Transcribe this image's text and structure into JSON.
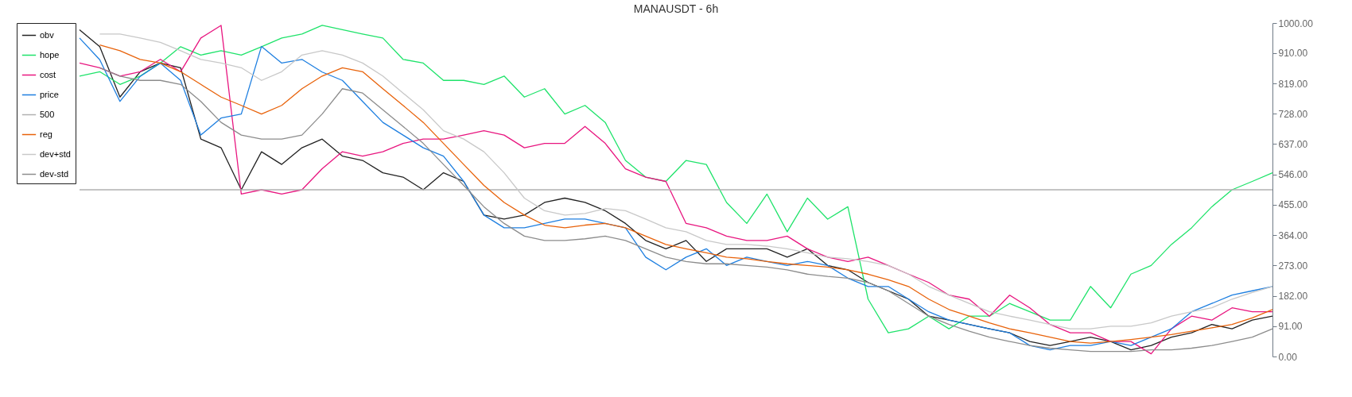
{
  "chart_data": {
    "type": "line",
    "title": "MANAUSDT - 6h",
    "categories": [
      null,
      null,
      null,
      null,
      null,
      null,
      null,
      null,
      null,
      null,
      null,
      null,
      null,
      null,
      null,
      null,
      null,
      null,
      null,
      null,
      null,
      null,
      null,
      null,
      null,
      null,
      null,
      null,
      null,
      null,
      null,
      null,
      null,
      null,
      null,
      null,
      null,
      null,
      null,
      null,
      null,
      null,
      null,
      null,
      null,
      null,
      null,
      null,
      null,
      null,
      null,
      null,
      null,
      null,
      null,
      null,
      null,
      null,
      null,
      null
    ],
    "series": [
      {
        "name": "obv",
        "color": "#222222",
        "values": [
          980,
          929,
          778,
          854,
          880,
          866,
          652,
          626,
          500,
          614,
          576,
          626,
          652,
          601,
          588,
          551,
          538,
          500,
          551,
          525,
          424,
          412,
          424,
          462,
          475,
          462,
          437,
          399,
          348,
          323,
          348,
          285,
          323,
          323,
          323,
          298,
          323,
          273,
          260,
          222,
          197,
          172,
          121,
          109,
          96,
          83,
          71,
          45,
          33,
          45,
          58,
          45,
          20,
          33,
          58,
          71,
          96,
          83,
          109,
          121
        ]
      },
      {
        "name": "hope",
        "color": "#1ee36a",
        "values": [
          841,
          854,
          816,
          841,
          880,
          929,
          904,
          917,
          904,
          929,
          955,
          967,
          993,
          980,
          967,
          955,
          891,
          880,
          828,
          828,
          816,
          841,
          778,
          803,
          727,
          753,
          702,
          588,
          538,
          525,
          588,
          576,
          462,
          399,
          487,
          374,
          475,
          412,
          449,
          172,
          71,
          83,
          121,
          83,
          121,
          121,
          159,
          134,
          109,
          109,
          210,
          146,
          247,
          273,
          336,
          386,
          449,
          500,
          525,
          551
        ]
      },
      {
        "name": "cost",
        "color": "#e8157f",
        "values": [
          880,
          866,
          841,
          854,
          891,
          854,
          955,
          993,
          487,
          500,
          487,
          500,
          563,
          614,
          601,
          614,
          639,
          652,
          652,
          664,
          677,
          664,
          626,
          639,
          639,
          690,
          639,
          563,
          538,
          525,
          399,
          386,
          361,
          348,
          348,
          361,
          323,
          298,
          285,
          298,
          273,
          247,
          222,
          184,
          172,
          121,
          184,
          146,
          96,
          71,
          71,
          45,
          45,
          8,
          83,
          121,
          109,
          146,
          134,
          134
        ]
      },
      {
        "name": "price",
        "color": "#1e7fe0",
        "values": [
          955,
          890,
          765,
          840,
          880,
          828,
          664,
          715,
          727,
          930,
          880,
          891,
          853,
          828,
          765,
          702,
          664,
          626,
          601,
          525,
          424,
          386,
          386,
          399,
          412,
          412,
          399,
          386,
          298,
          260,
          298,
          323,
          273,
          298,
          285,
          273,
          285,
          273,
          235,
          210,
          210,
          172,
          134,
          109,
          96,
          83,
          71,
          33,
          20,
          33,
          33,
          45,
          33,
          58,
          83,
          134,
          159,
          184,
          197,
          210
        ]
      },
      {
        "name": "500",
        "color": "#b0b0b0",
        "values": [
          500,
          500,
          500,
          500,
          500,
          500,
          500,
          500,
          500,
          500,
          500,
          500,
          500,
          500,
          500,
          500,
          500,
          500,
          500,
          500,
          500,
          500,
          500,
          500,
          500,
          500,
          500,
          500,
          500,
          500,
          500,
          500,
          500,
          500,
          500,
          500,
          500,
          500,
          500,
          500,
          500,
          500,
          500,
          500,
          500,
          500,
          500,
          500,
          500,
          500,
          500,
          500,
          500,
          500,
          500,
          500,
          500,
          500,
          500,
          500
        ]
      },
      {
        "name": "reg",
        "color": "#e8620a",
        "values": [
          null,
          934,
          917,
          891,
          880,
          854,
          816,
          778,
          753,
          727,
          753,
          803,
          841,
          866,
          854,
          803,
          753,
          702,
          639,
          576,
          513,
          462,
          424,
          394,
          386,
          394,
          399,
          386,
          361,
          336,
          323,
          311,
          298,
          293,
          285,
          278,
          273,
          268,
          260,
          247,
          230,
          210,
          172,
          141,
          121,
          101,
          83,
          71,
          58,
          45,
          40,
          45,
          51,
          58,
          66,
          76,
          86,
          96,
          116,
          141
        ]
      },
      {
        "name": "dev+std",
        "color": "#c8c8c8",
        "values": [
          null,
          967,
          967,
          955,
          942,
          917,
          891,
          880,
          866,
          828,
          854,
          904,
          917,
          904,
          880,
          841,
          790,
          740,
          677,
          652,
          614,
          551,
          475,
          437,
          424,
          429,
          444,
          437,
          412,
          386,
          374,
          348,
          336,
          336,
          331,
          323,
          311,
          298,
          293,
          285,
          273,
          247,
          210,
          184,
          159,
          134,
          121,
          109,
          96,
          83,
          83,
          91,
          91,
          101,
          121,
          134,
          146,
          172,
          192,
          210
        ]
      },
      {
        "name": "dev-std",
        "color": "#8c8c8c",
        "values": [
          null,
          866,
          841,
          828,
          828,
          816,
          765,
          702,
          664,
          652,
          652,
          664,
          727,
          803,
          790,
          740,
          690,
          639,
          576,
          513,
          449,
          399,
          361,
          348,
          348,
          353,
          361,
          348,
          323,
          298,
          285,
          278,
          278,
          273,
          268,
          260,
          247,
          240,
          235,
          222,
          197,
          159,
          121,
          96,
          76,
          58,
          45,
          33,
          25,
          20,
          15,
          15,
          15,
          20,
          20,
          25,
          33,
          45,
          58,
          83
        ]
      }
    ],
    "ylim": [
      0,
      1000
    ],
    "yticks": [
      {
        "value": 0,
        "label": "0.00"
      },
      {
        "value": 91,
        "label": "91.00"
      },
      {
        "value": 182,
        "label": "182.00"
      },
      {
        "value": 273,
        "label": "273.00"
      },
      {
        "value": 364,
        "label": "364.00"
      },
      {
        "value": 455,
        "label": "455.00"
      },
      {
        "value": 546,
        "label": "546.00"
      },
      {
        "value": 637,
        "label": "637.00"
      },
      {
        "value": 728,
        "label": "728.00"
      },
      {
        "value": 819,
        "label": "819.00"
      },
      {
        "value": 910,
        "label": "910.00"
      },
      {
        "value": 1000,
        "label": "1000.00"
      }
    ],
    "tick_labels": "y",
    "grid": false,
    "legend": "top left"
  }
}
